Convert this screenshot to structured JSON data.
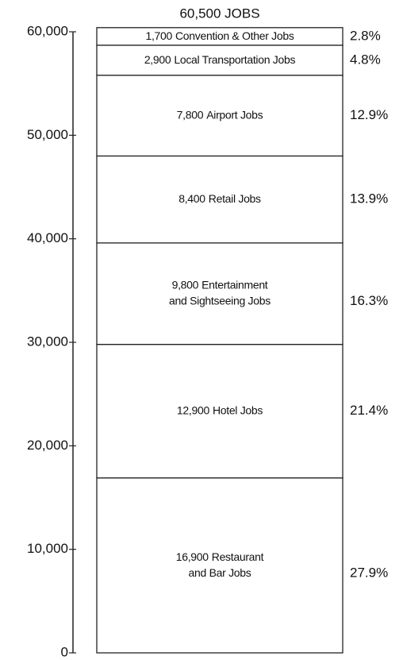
{
  "chart_data": {
    "type": "stacked-bar",
    "title": "60,500 JOBS",
    "ylim": [
      0,
      60000
    ],
    "yticks": [
      0,
      {
        "value": 10000,
        "label": "10,000"
      },
      {
        "value": 20000,
        "label": "20,000"
      },
      {
        "value": 30000,
        "label": "30,000"
      },
      {
        "value": 40000,
        "label": "40,000"
      },
      {
        "value": 50000,
        "label": "50,000"
      },
      {
        "value": 60000,
        "label": "60,000"
      }
    ],
    "color": "#ffffff",
    "series": [
      {
        "label": [
          "Restaurant",
          "and Bar Jobs"
        ],
        "values": [
          16900
        ],
        "value_labels": [
          "16,900"
        ],
        "share_label": "27.9%"
      },
      {
        "label": [
          "Hotel Jobs"
        ],
        "values": [
          12900
        ],
        "value_labels": [
          "12,900"
        ],
        "share_label": "21.4%"
      },
      {
        "label": [
          "Entertainment",
          "and Sightseeing Jobs"
        ],
        "values": [
          9800
        ],
        "value_labels": [
          "9,800"
        ],
        "share_label": "16.3%"
      },
      {
        "label": [
          "Retail Jobs"
        ],
        "values": [
          8400
        ],
        "value_labels": [
          "8,400"
        ],
        "share_label": "13.9%"
      },
      {
        "label": [
          "Airport Jobs"
        ],
        "values": [
          7800
        ],
        "value_labels": [
          "7,800"
        ],
        "share_label": "12.9%"
      },
      {
        "label": [
          "Local Transportation Jobs"
        ],
        "values": [
          2900
        ],
        "value_labels": [
          "2,900"
        ],
        "share_label": "4.8%"
      },
      {
        "label": [
          "Convention & Other Jobs"
        ],
        "values": [
          1700
        ],
        "value_labels": [
          "1,700"
        ],
        "share_label": "2.8%"
      }
    ]
  }
}
